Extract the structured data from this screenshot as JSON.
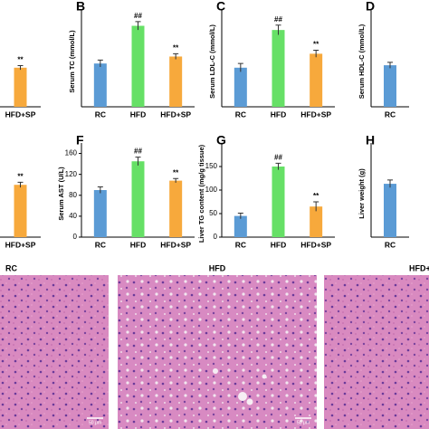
{
  "chart_data": [
    {
      "type": "bar",
      "categories": [
        "HFD+SP"
      ],
      "values": [
        2.8
      ],
      "errors": [
        0.15
      ],
      "annotations": [
        "**"
      ],
      "colors": [
        "#f7a93c"
      ],
      "ylim": [
        0,
        7
      ]
    },
    {
      "type": "bar",
      "panel": "B",
      "ylabel": "Serum TC (mmol/L)",
      "categories": [
        "RC",
        "HFD",
        "HFD+SP"
      ],
      "values": [
        3.1,
        5.8,
        3.6
      ],
      "errors": [
        0.25,
        0.3,
        0.2
      ],
      "annotations": [
        null,
        "##",
        "**"
      ],
      "colors": [
        "#5b9bd5",
        "#66e066",
        "#f7a93c"
      ],
      "ylim": [
        0,
        7
      ]
    },
    {
      "type": "bar",
      "panel": "C",
      "ylabel": "Serum LDL-C (mmol/L)",
      "categories": [
        "RC",
        "HFD",
        "HFD+SP"
      ],
      "values": [
        2.8,
        5.5,
        3.8
      ],
      "errors": [
        0.3,
        0.35,
        0.25
      ],
      "annotations": [
        null,
        "##",
        "**"
      ],
      "colors": [
        "#5b9bd5",
        "#66e066",
        "#f7a93c"
      ],
      "ylim": [
        0,
        7
      ]
    },
    {
      "type": "bar",
      "panel": "D",
      "ylabel": "Serum HDL-C (mmol/L)",
      "categories": [
        "RC"
      ],
      "values": [
        0.85
      ],
      "errors": [
        0.06
      ],
      "annotations": [
        null
      ],
      "colors": [
        "#5b9bd5"
      ],
      "ylim": [
        0,
        2
      ]
    },
    {
      "type": "bar",
      "categories": [
        "HFD+SP"
      ],
      "values": [
        100
      ],
      "errors": [
        5
      ],
      "annotations": [
        "**"
      ],
      "colors": [
        "#f7a93c"
      ],
      "ylim": [
        0,
        180
      ]
    },
    {
      "type": "bar",
      "panel": "F",
      "ylabel": "Serum AST (U/L)",
      "categories": [
        "RC",
        "HFD",
        "HFD+SP"
      ],
      "values": [
        90,
        145,
        108
      ],
      "errors": [
        6,
        8,
        4
      ],
      "annotations": [
        null,
        "##",
        "**"
      ],
      "colors": [
        "#5b9bd5",
        "#66e066",
        "#f7a93c"
      ],
      "ylim": [
        0,
        180
      ],
      "yticks": [
        0,
        40,
        80,
        120,
        160
      ]
    },
    {
      "type": "bar",
      "panel": "G",
      "ylabel": "Liver TG content (mg/g tissue)",
      "categories": [
        "RC",
        "HFD",
        "HFD+SP"
      ],
      "values": [
        45,
        150,
        65
      ],
      "errors": [
        6,
        7,
        10
      ],
      "annotations": [
        null,
        "##",
        "**"
      ],
      "colors": [
        "#5b9bd5",
        "#66e066",
        "#f7a93c"
      ],
      "ylim": [
        0,
        200
      ],
      "yticks": [
        0,
        50,
        100,
        150
      ]
    },
    {
      "type": "bar",
      "panel": "H",
      "ylabel": "Liver weight (g)",
      "categories": [
        "RC"
      ],
      "values": [
        1.7
      ],
      "errors": [
        0.12
      ],
      "annotations": [
        null
      ],
      "colors": [
        "#5b9bd5"
      ],
      "ylim": [
        0,
        3
      ]
    }
  ],
  "images": [
    {
      "label": "RC",
      "scale_bar": "50 μm"
    },
    {
      "label": "HFD",
      "scale_bar": "50 μm"
    },
    {
      "label": "HFD+SP"
    }
  ]
}
